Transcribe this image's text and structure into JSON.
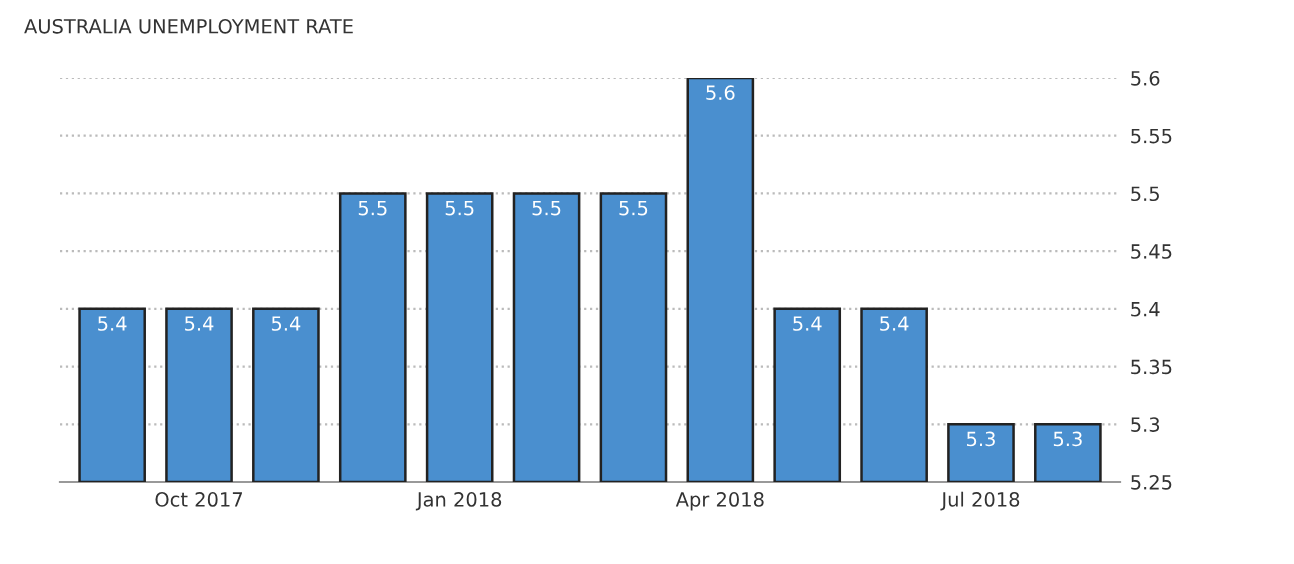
{
  "chart_data": {
    "type": "bar",
    "title": "AUSTRALIA UNEMPLOYMENT RATE",
    "categories": [
      null,
      "Oct 2017",
      null,
      null,
      "Jan 2018",
      null,
      null,
      "Apr 2018",
      null,
      null,
      "Jul 2018",
      null
    ],
    "values": [
      5.4,
      5.4,
      5.4,
      5.5,
      5.5,
      5.5,
      5.5,
      5.6,
      5.4,
      5.4,
      5.3,
      5.3
    ],
    "color": "#4a8fcf",
    "ylim": [
      5.25,
      5.6
    ],
    "yticks": [
      5.25,
      5.3,
      5.35,
      5.4,
      5.45,
      5.5,
      5.55,
      5.6
    ],
    "grid": "y",
    "data_labels": true
  }
}
